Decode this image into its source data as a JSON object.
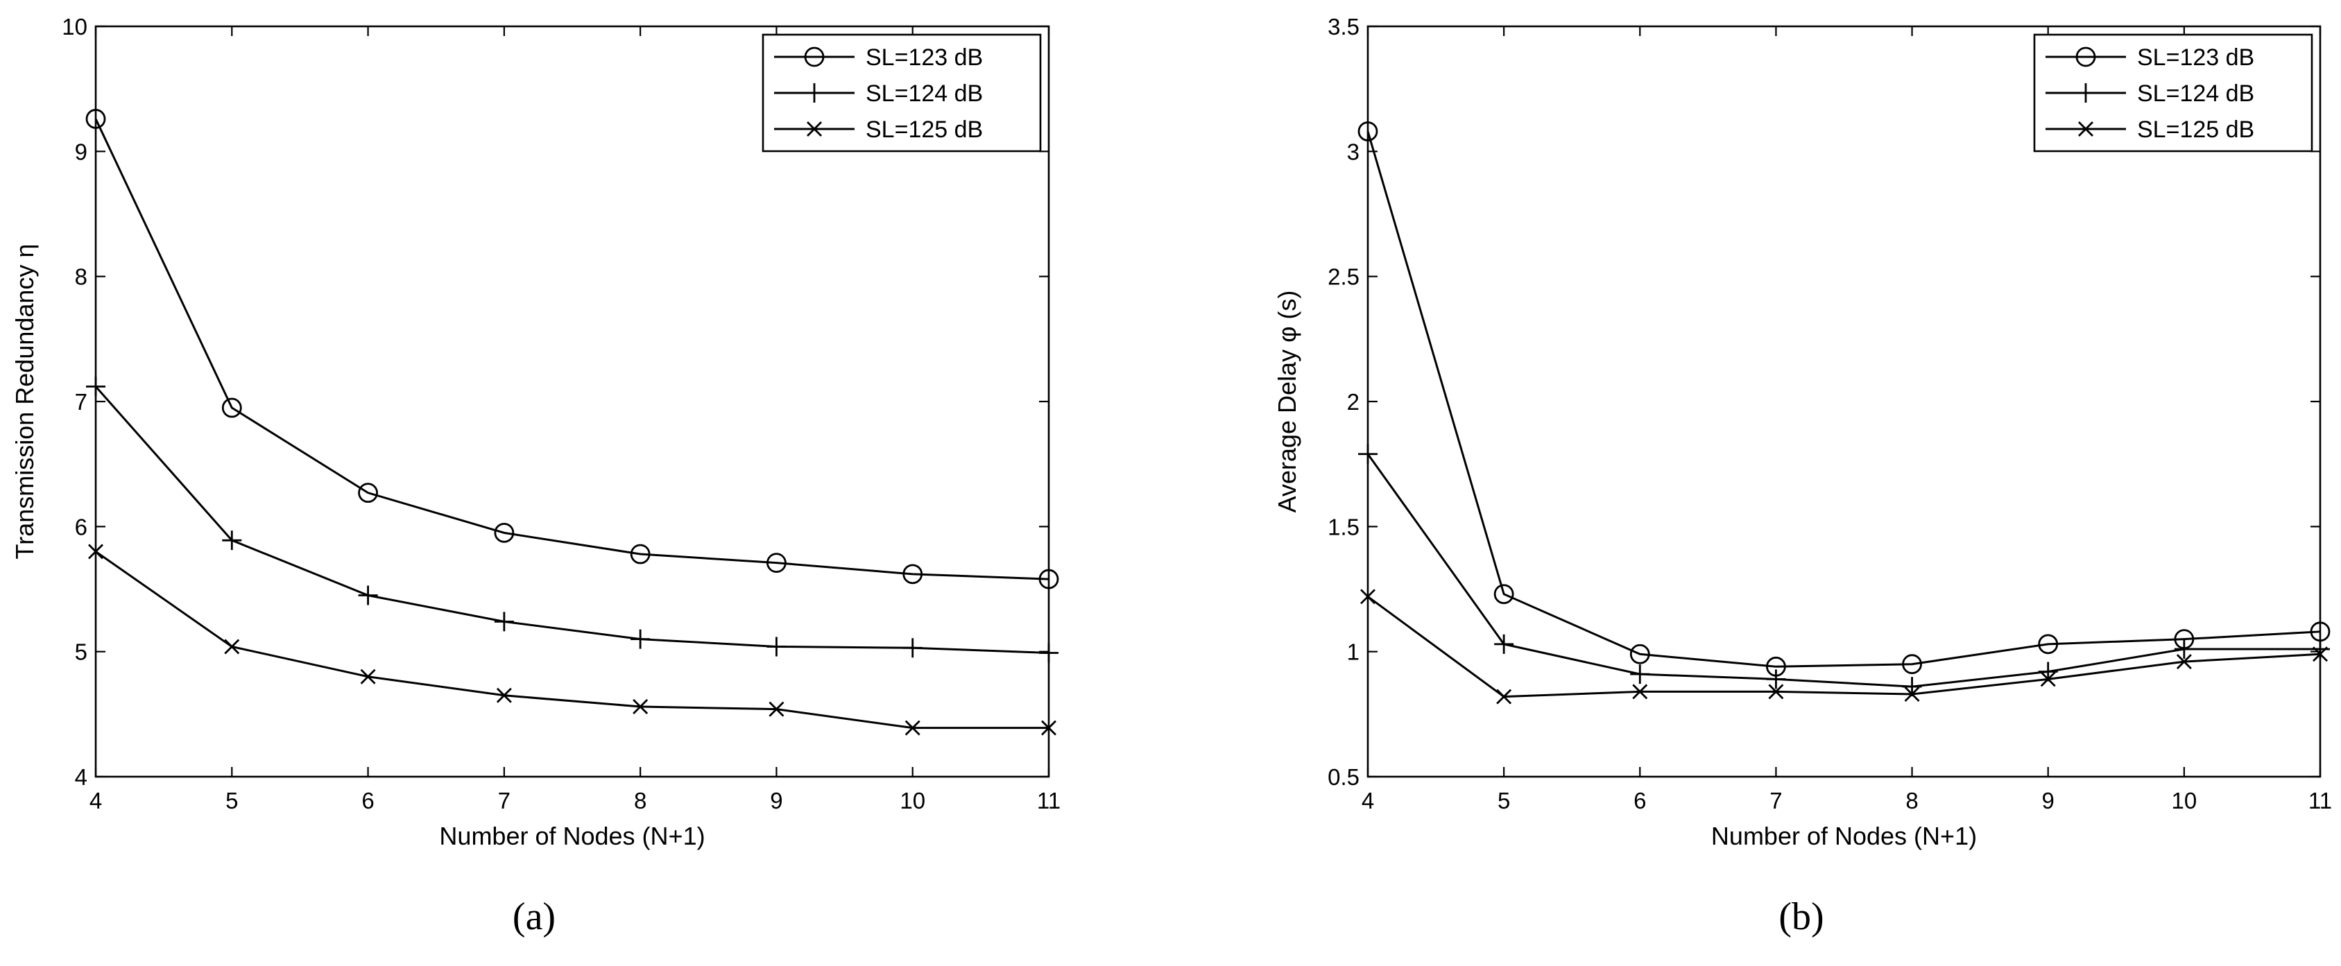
{
  "chart_data": [
    {
      "type": "line",
      "panel": "a",
      "caption": "(a)",
      "xlabel": "Number of Nodes (N+1)",
      "ylabel": "Transmission Redundancy η",
      "xlim": [
        4,
        11
      ],
      "ylim": [
        4,
        10
      ],
      "xticks": [
        4,
        5,
        6,
        7,
        8,
        9,
        10,
        11
      ],
      "yticks": [
        4,
        5,
        6,
        7,
        8,
        9,
        10
      ],
      "grid": false,
      "legend_position": "top-right",
      "x": [
        4,
        5,
        6,
        7,
        8,
        9,
        10,
        11
      ],
      "series": [
        {
          "name": "SL=123 dB",
          "marker": "circle",
          "values": [
            9.26,
            6.95,
            6.27,
            5.95,
            5.78,
            5.71,
            5.62,
            5.58
          ]
        },
        {
          "name": "SL=124 dB",
          "marker": "plus",
          "values": [
            7.12,
            5.89,
            5.45,
            5.24,
            5.1,
            5.04,
            5.03,
            4.99
          ]
        },
        {
          "name": "SL=125 dB",
          "marker": "x",
          "values": [
            5.8,
            5.04,
            4.8,
            4.65,
            4.56,
            4.54,
            4.39,
            4.39
          ]
        }
      ]
    },
    {
      "type": "line",
      "panel": "b",
      "caption": "(b)",
      "xlabel": "Number of Nodes (N+1)",
      "ylabel": "Average Delay φ (s)",
      "xlim": [
        4,
        11
      ],
      "ylim": [
        0.5,
        3.5
      ],
      "xticks": [
        4,
        5,
        6,
        7,
        8,
        9,
        10,
        11
      ],
      "yticks": [
        0.5,
        1,
        1.5,
        2,
        2.5,
        3,
        3.5
      ],
      "grid": false,
      "legend_position": "top-right",
      "x": [
        4,
        5,
        6,
        7,
        8,
        9,
        10,
        11
      ],
      "series": [
        {
          "name": "SL=123 dB",
          "marker": "circle",
          "values": [
            3.08,
            1.23,
            0.99,
            0.94,
            0.95,
            1.03,
            1.05,
            1.08
          ]
        },
        {
          "name": "SL=124 dB",
          "marker": "plus",
          "values": [
            1.79,
            1.03,
            0.91,
            0.89,
            0.86,
            0.92,
            1.01,
            1.01
          ]
        },
        {
          "name": "SL=125 dB",
          "marker": "x",
          "values": [
            1.22,
            0.82,
            0.84,
            0.84,
            0.83,
            0.89,
            0.96,
            0.99
          ]
        }
      ]
    }
  ]
}
